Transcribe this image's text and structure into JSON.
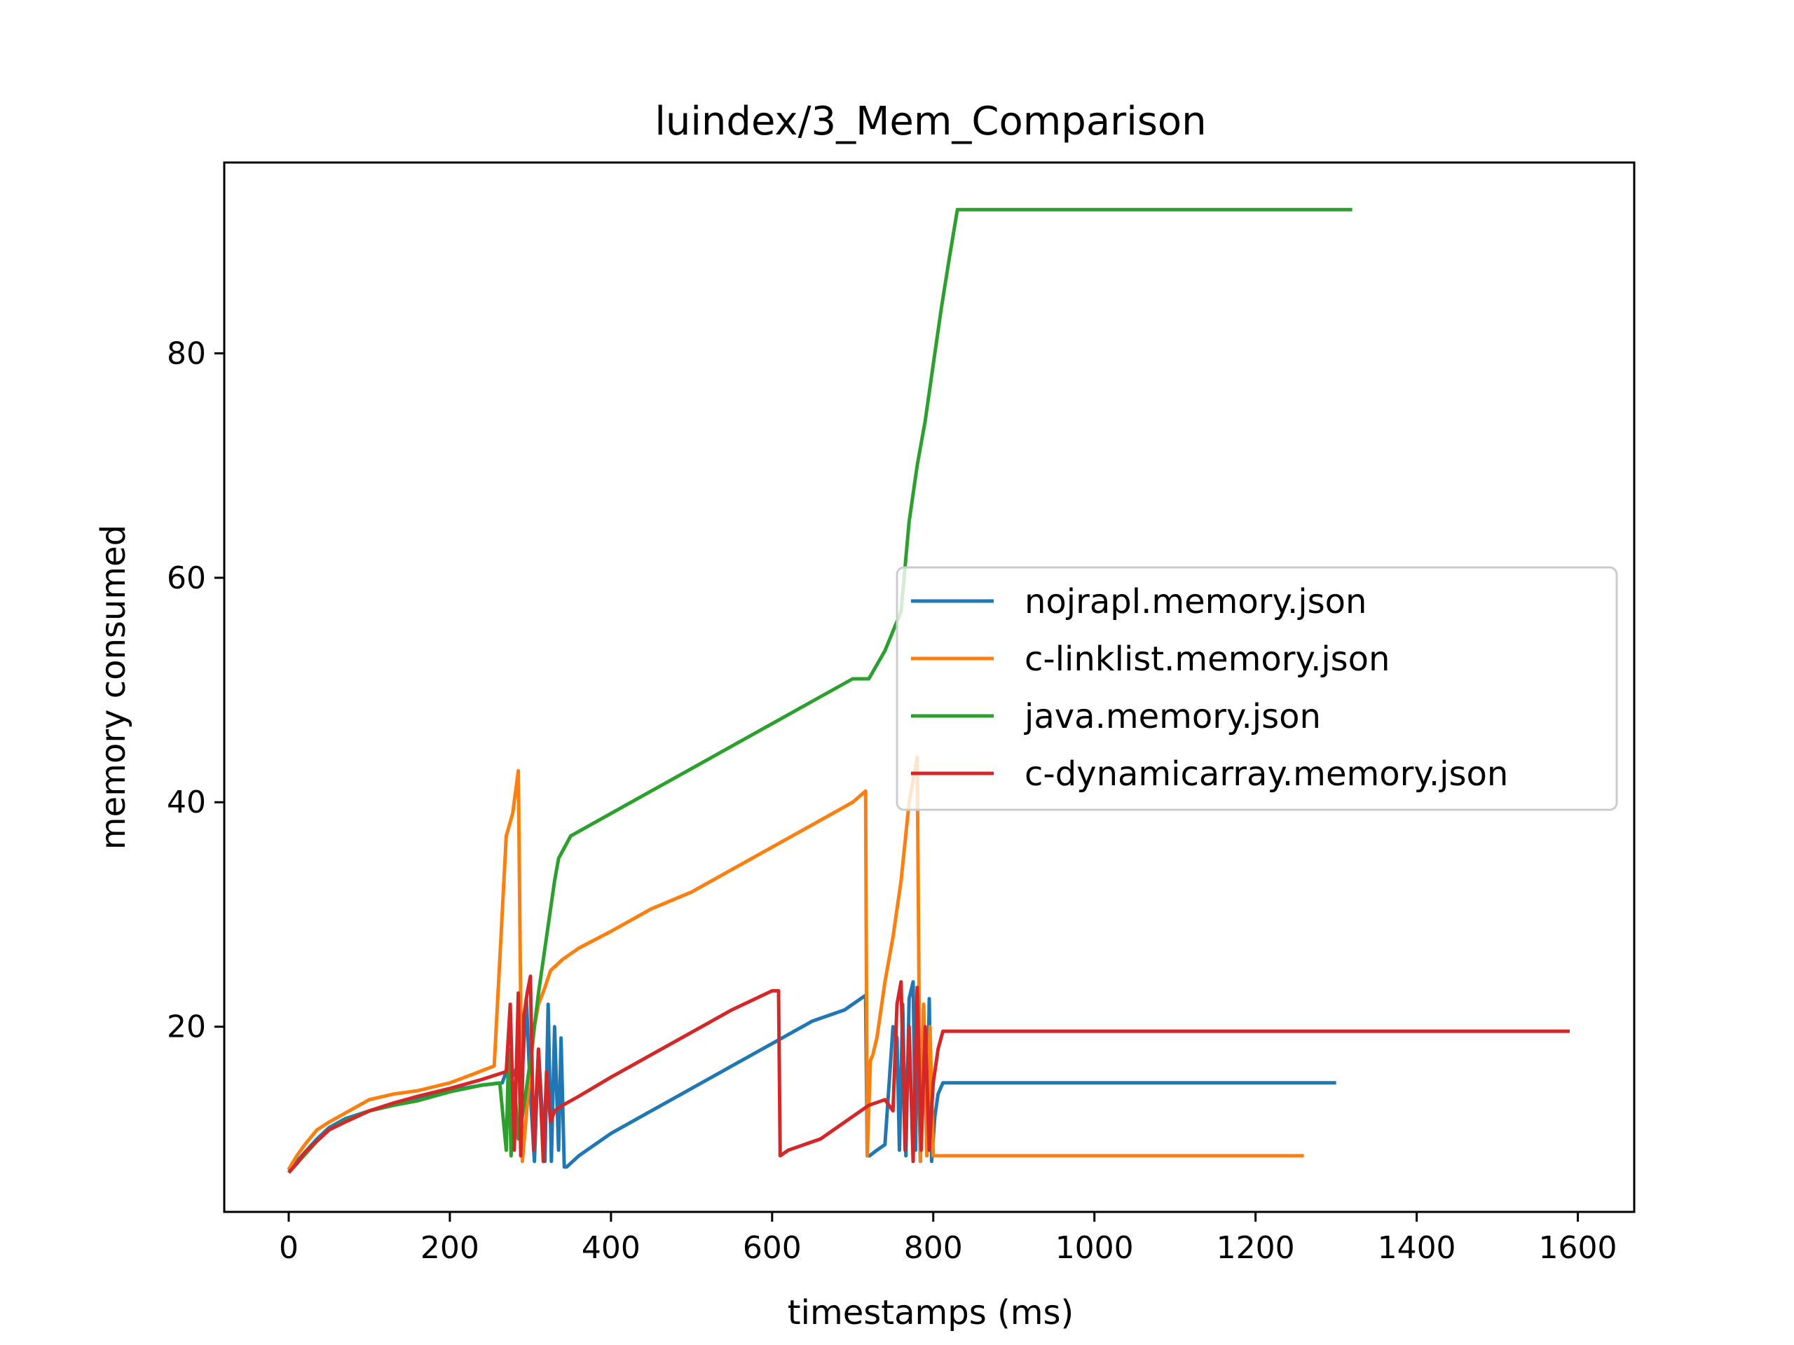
{
  "chart_data": {
    "type": "line",
    "title": "luindex/3_Mem_Comparison",
    "xlabel": "timestamps (ms)",
    "ylabel": "memory consumed",
    "xlim": [
      -80,
      1670
    ],
    "ylim": [
      3.5,
      97
    ],
    "xticks": [
      0,
      200,
      400,
      600,
      800,
      1000,
      1200,
      1400,
      1600
    ],
    "yticks": [
      20,
      40,
      60,
      80
    ],
    "grid": false,
    "legend_position": "center-right",
    "series": [
      {
        "name": "nojrapl.memory.json",
        "color": "#1f77b4",
        "x": [
          0,
          10,
          20,
          35,
          50,
          70,
          100,
          130,
          160,
          200,
          240,
          265,
          270,
          275,
          280,
          285,
          290,
          295,
          300,
          305,
          310,
          318,
          322,
          326,
          330,
          335,
          338,
          342,
          345,
          360,
          400,
          450,
          500,
          550,
          600,
          650,
          690,
          716,
          718,
          721,
          730,
          740,
          750,
          755,
          758,
          762,
          766,
          770,
          775,
          778,
          780,
          784,
          788,
          792,
          795,
          798,
          802,
          806,
          812,
          820,
          900,
          1100,
          1300
        ],
        "y": [
          7.2,
          8.0,
          8.8,
          10.0,
          11.0,
          11.8,
          12.5,
          13.0,
          13.5,
          14.3,
          14.8,
          15.0,
          16.0,
          15.0,
          16.0,
          16.5,
          16.0,
          22.5,
          14.0,
          8.0,
          18.0,
          8.0,
          22.0,
          8.0,
          20.0,
          9.0,
          19.0,
          7.5,
          7.5,
          8.5,
          10.5,
          12.5,
          14.5,
          16.5,
          18.5,
          20.5,
          21.5,
          22.8,
          8.5,
          8.5,
          9.0,
          9.5,
          20.0,
          19.0,
          9.0,
          22.0,
          8.5,
          22.5,
          24.0,
          9.0,
          23.0,
          8.0,
          22.0,
          8.5,
          22.5,
          8.0,
          12.0,
          14.0,
          15.0,
          15.0,
          15.0,
          15.0,
          15.0
        ]
      },
      {
        "name": "c-linklist.memory.json",
        "color": "#ff7f0e",
        "x": [
          0,
          10,
          20,
          35,
          50,
          70,
          100,
          130,
          160,
          200,
          230,
          255,
          262,
          270,
          278,
          285,
          290,
          296,
          300,
          305,
          310,
          318,
          325,
          340,
          360,
          400,
          450,
          500,
          550,
          600,
          650,
          700,
          716,
          718,
          722,
          725,
          730,
          740,
          750,
          760,
          770,
          780,
          784,
          788,
          792,
          796,
          800,
          810,
          900,
          1100,
          1260
        ],
        "y": [
          7.3,
          8.5,
          9.5,
          10.8,
          11.5,
          12.3,
          13.5,
          14.0,
          14.3,
          15.0,
          15.8,
          16.5,
          26.0,
          37.0,
          39.0,
          42.8,
          8.0,
          13.0,
          16.5,
          20.0,
          22.0,
          23.5,
          25.0,
          26.0,
          27.0,
          28.5,
          30.5,
          32.0,
          34.0,
          36.0,
          38.0,
          40.0,
          41.0,
          8.5,
          17.0,
          17.5,
          19.0,
          24.0,
          28.0,
          33.0,
          40.0,
          44.0,
          8.0,
          22.0,
          8.5,
          20.0,
          8.5,
          8.5,
          8.5,
          8.5,
          8.5
        ]
      },
      {
        "name": "java.memory.json",
        "color": "#2ca02c",
        "x": [
          0,
          10,
          20,
          35,
          50,
          70,
          100,
          130,
          160,
          200,
          240,
          262,
          270,
          273,
          276,
          280,
          285,
          290,
          295,
          300,
          305,
          310,
          320,
          330,
          335,
          350,
          400,
          450,
          500,
          550,
          600,
          650,
          700,
          720,
          740,
          760,
          770,
          780,
          790,
          800,
          810,
          820,
          830,
          1000,
          1320
        ],
        "y": [
          7.0,
          7.8,
          8.6,
          9.8,
          10.8,
          11.6,
          12.5,
          13.0,
          13.4,
          14.2,
          14.8,
          15.0,
          9.0,
          18.0,
          8.5,
          15.0,
          10.0,
          12.0,
          14.5,
          17.0,
          20.0,
          23.0,
          28.0,
          33.0,
          35.0,
          37.0,
          39.0,
          41.0,
          43.0,
          45.0,
          47.0,
          49.0,
          51.0,
          51.0,
          53.5,
          57.0,
          65.0,
          70.0,
          74.0,
          79.0,
          84.0,
          88.5,
          92.8,
          92.8,
          92.8
        ]
      },
      {
        "name": "c-dynamicarray.memory.json",
        "color": "#d62728",
        "x": [
          0,
          10,
          20,
          35,
          50,
          70,
          100,
          130,
          160,
          200,
          240,
          270,
          275,
          280,
          285,
          288,
          292,
          296,
          300,
          304,
          310,
          316,
          320,
          325,
          330,
          340,
          360,
          400,
          450,
          500,
          550,
          600,
          608,
          610,
          620,
          660,
          700,
          720,
          740,
          750,
          755,
          760,
          765,
          770,
          775,
          780,
          785,
          790,
          795,
          800,
          806,
          812,
          900,
          1100,
          1300,
          1590
        ],
        "y": [
          7.0,
          7.8,
          8.8,
          9.8,
          10.8,
          11.5,
          12.5,
          13.2,
          13.8,
          14.5,
          15.3,
          16.0,
          22.0,
          9.0,
          23.0,
          8.5,
          21.0,
          23.0,
          24.5,
          9.0,
          18.0,
          8.0,
          16.0,
          11.5,
          12.5,
          13.0,
          13.8,
          15.5,
          17.5,
          19.5,
          21.5,
          23.2,
          23.2,
          8.5,
          9.0,
          10.0,
          12.0,
          13.0,
          13.5,
          12.5,
          22.0,
          24.0,
          9.0,
          20.0,
          8.0,
          23.5,
          9.0,
          20.0,
          9.0,
          15.0,
          18.0,
          19.6,
          19.6,
          19.6,
          19.6,
          19.6
        ]
      }
    ]
  }
}
